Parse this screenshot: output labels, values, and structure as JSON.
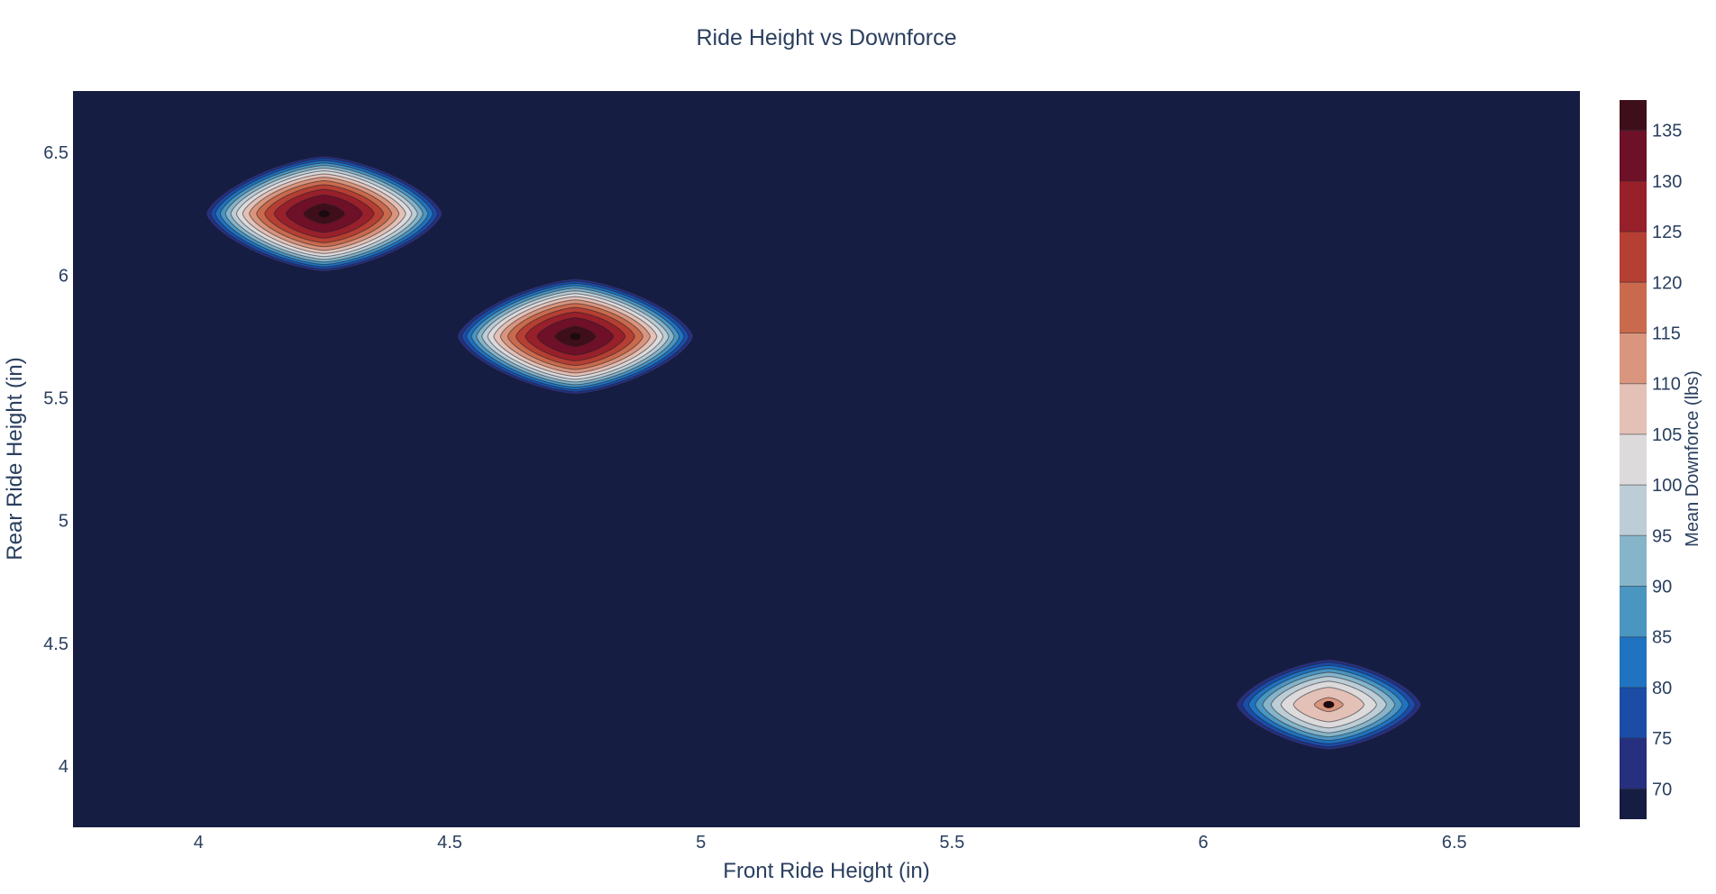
{
  "chart_data": {
    "type": "contour",
    "title": "Ride Height vs Downforce",
    "xlabel": "Front Ride Height (in)",
    "ylabel": "Rear Ride Height (in)",
    "xlim": [
      3.75,
      6.75
    ],
    "ylim": [
      3.75,
      6.75
    ],
    "x_ticks": [
      {
        "value": 4,
        "label": "4"
      },
      {
        "value": 4.5,
        "label": "4.5"
      },
      {
        "value": 5,
        "label": "5"
      },
      {
        "value": 5.5,
        "label": "5.5"
      },
      {
        "value": 6,
        "label": "6"
      },
      {
        "value": 6.5,
        "label": "6.5"
      }
    ],
    "y_ticks": [
      {
        "value": 4,
        "label": "4"
      },
      {
        "value": 4.5,
        "label": "4.5"
      },
      {
        "value": 5,
        "label": "5"
      },
      {
        "value": 5.5,
        "label": "5.5"
      },
      {
        "value": 6,
        "label": "6"
      },
      {
        "value": 6.5,
        "label": "6.5"
      }
    ],
    "grid": false,
    "peaks": [
      {
        "x": 4.25,
        "y": 6.25,
        "value": 137
      },
      {
        "x": 4.75,
        "y": 5.75,
        "value": 137
      },
      {
        "x": 6.25,
        "y": 4.25,
        "value": 111
      }
    ],
    "background_value": 67,
    "colorbar": {
      "title": "Mean Downforce (lbs)",
      "range": [
        67,
        138
      ],
      "contour_start": 70,
      "contour_step": 5,
      "ticks": [
        {
          "value": 70,
          "label": "70"
        },
        {
          "value": 75,
          "label": "75"
        },
        {
          "value": 80,
          "label": "80"
        },
        {
          "value": 85,
          "label": "85"
        },
        {
          "value": 90,
          "label": "90"
        },
        {
          "value": 95,
          "label": "95"
        },
        {
          "value": 100,
          "label": "100"
        },
        {
          "value": 105,
          "label": "105"
        },
        {
          "value": 110,
          "label": "110"
        },
        {
          "value": 115,
          "label": "115"
        },
        {
          "value": 120,
          "label": "120"
        },
        {
          "value": 125,
          "label": "125"
        },
        {
          "value": 130,
          "label": "130"
        },
        {
          "value": 135,
          "label": "135"
        }
      ],
      "placement": "right"
    },
    "colorscale": [
      "#161d42",
      "#27307f",
      "#1b4da7",
      "#1f73c0",
      "#4b95c1",
      "#86b4c8",
      "#bccdd6",
      "#dcdadb",
      "#e3c1b6",
      "#d9957d",
      "#c96a4d",
      "#b53f32",
      "#98202b",
      "#6e1027",
      "#3e0f1a"
    ]
  }
}
